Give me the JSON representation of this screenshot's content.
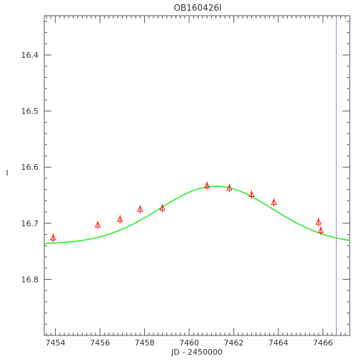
{
  "chart_data": {
    "type": "scatter",
    "title": "OB160426I",
    "xlabel": "JD - 2450000",
    "ylabel": "I",
    "xlim": [
      7453.5,
      7467.2
    ],
    "ylim": [
      16.9,
      16.33
    ],
    "y_inverted": true,
    "x_ticks": [
      7454,
      7456,
      7458,
      7460,
      7462,
      7464,
      7466
    ],
    "y_ticks": [
      16.4,
      16.5,
      16.6,
      16.7,
      16.8
    ],
    "x_tick_labels": [
      "7454",
      "7456",
      "7458",
      "7460",
      "7462",
      "7464",
      "7466"
    ],
    "y_tick_labels": [
      "16.4",
      "16.5",
      "16.6",
      "16.7",
      "16.8"
    ],
    "grid": false,
    "series": [
      {
        "marker": "triangle",
        "color": "#ff0000",
        "points": [
          {
            "x": 7453.9,
            "y": 16.726
          },
          {
            "x": 7455.9,
            "y": 16.703
          },
          {
            "x": 7456.9,
            "y": 16.693
          },
          {
            "x": 7457.8,
            "y": 16.675
          },
          {
            "x": 7458.8,
            "y": 16.673
          },
          {
            "x": 7460.8,
            "y": 16.633
          },
          {
            "x": 7461.8,
            "y": 16.637
          },
          {
            "x": 7462.8,
            "y": 16.649
          },
          {
            "x": 7463.8,
            "y": 16.663
          },
          {
            "x": 7465.8,
            "y": 16.698
          },
          {
            "x": 7465.9,
            "y": 16.713
          }
        ]
      },
      {
        "type": "line",
        "color": "#00ee00",
        "model": {
          "baseline": 16.737,
          "peak_time": 7461.2,
          "peak_mag": 16.634,
          "width": 3.6
        }
      }
    ],
    "vertical_line": {
      "x": 7466.6,
      "color": "#8888dd"
    }
  }
}
